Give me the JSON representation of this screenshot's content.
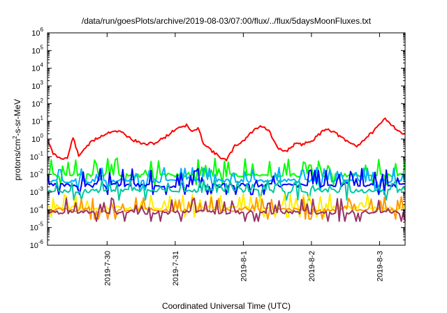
{
  "chart_data": {
    "type": "line",
    "title": "/data/run/goesPlots/archive/2019-08-03/07:00/flux/../flux/5daysMoonFluxes.txt",
    "xlabel": "Coordinated Universal Time (UTC)",
    "ylabel_parts": [
      "protons/cm",
      "2",
      "-s-sr-MeV"
    ],
    "yscale": "log",
    "ylim": [
      1e-06,
      1000000.0
    ],
    "y_ticks": [
      {
        "base": "10",
        "exp": "-6",
        "value": 1e-06
      },
      {
        "base": "10",
        "exp": "-5",
        "value": 1e-05
      },
      {
        "base": "10",
        "exp": "-4",
        "value": 0.0001
      },
      {
        "base": "10",
        "exp": "-3",
        "value": 0.001
      },
      {
        "base": "10",
        "exp": "-2",
        "value": 0.01
      },
      {
        "base": "10",
        "exp": "-1",
        "value": 0.1
      },
      {
        "base": "10",
        "exp": "0",
        "value": 1
      },
      {
        "base": "10",
        "exp": "1",
        "value": 10
      },
      {
        "base": "10",
        "exp": "2",
        "value": 100
      },
      {
        "base": "10",
        "exp": "3",
        "value": 1000
      },
      {
        "base": "10",
        "exp": "4",
        "value": 10000
      },
      {
        "base": "10",
        "exp": "5",
        "value": 100000
      },
      {
        "base": "10",
        "exp": "6",
        "value": 1000000
      }
    ],
    "xlim": [
      "2019-07-29T03:00",
      "2019-08-03T09:00"
    ],
    "x_ticks": [
      {
        "label": "2019-7-30",
        "value": "2019-07-30T00:00"
      },
      {
        "label": "2019-7-31",
        "value": "2019-07-31T00:00"
      },
      {
        "label": "2019-8-1",
        "value": "2019-08-01T00:00"
      },
      {
        "label": "2019-8-2",
        "value": "2019-08-02T00:00"
      },
      {
        "label": "2019-8-3",
        "value": "2019-08-03T00:00"
      }
    ],
    "grid": false,
    "legend": "none",
    "series": [
      {
        "color": "#ff0000",
        "style": "smooth",
        "points": [
          [
            "2019-07-29T03:00",
            0.8
          ],
          [
            "2019-07-29T05:00",
            0.15
          ],
          [
            "2019-07-29T07:00",
            0.09
          ],
          [
            "2019-07-29T10:00",
            0.08
          ],
          [
            "2019-07-29T12:00",
            1.3
          ],
          [
            "2019-07-29T14:00",
            0.1
          ],
          [
            "2019-07-29T16:00",
            0.3
          ],
          [
            "2019-07-29T19:00",
            0.8
          ],
          [
            "2019-07-29T22:00",
            1.5
          ],
          [
            "2019-07-30T02:00",
            3
          ],
          [
            "2019-07-30T05:00",
            2.5
          ],
          [
            "2019-07-30T09:00",
            0.9
          ],
          [
            "2019-07-30T13:00",
            0.5
          ],
          [
            "2019-07-30T17:00",
            0.6
          ],
          [
            "2019-07-30T21:00",
            1.5
          ],
          [
            "2019-07-31T01:00",
            4.5
          ],
          [
            "2019-07-31T04:00",
            6
          ],
          [
            "2019-07-31T06:00",
            2.5
          ],
          [
            "2019-07-31T08:00",
            4
          ],
          [
            "2019-07-31T10:00",
            0.6
          ],
          [
            "2019-07-31T14:00",
            0.15
          ],
          [
            "2019-07-31T18:00",
            0.06
          ],
          [
            "2019-07-31T21:00",
            0.4
          ],
          [
            "2019-08-01T00:00",
            0.8
          ],
          [
            "2019-08-01T03:00",
            2.5
          ],
          [
            "2019-08-01T06:00",
            6
          ],
          [
            "2019-08-01T09:00",
            3
          ],
          [
            "2019-08-01T12:00",
            0.3
          ],
          [
            "2019-08-01T15:00",
            0.2
          ],
          [
            "2019-08-01T18:00",
            0.5
          ],
          [
            "2019-08-01T21:00",
            0.5
          ],
          [
            "2019-08-02T01:00",
            1
          ],
          [
            "2019-08-02T05:00",
            4
          ],
          [
            "2019-08-02T08:00",
            2.5
          ],
          [
            "2019-08-02T12:00",
            0.8
          ],
          [
            "2019-08-02T16:00",
            0.4
          ],
          [
            "2019-08-02T20:00",
            1.5
          ],
          [
            "2019-08-02T23:00",
            4
          ],
          [
            "2019-08-03T02:00",
            15
          ],
          [
            "2019-08-03T05:00",
            5
          ],
          [
            "2019-08-03T08:00",
            2
          ],
          [
            "2019-08-03T09:00",
            2
          ]
        ]
      },
      {
        "color": "#00ff00",
        "style": "spiky",
        "base": 0.009,
        "amp": 0.08,
        "seed": 1
      },
      {
        "color": "#00b0ff",
        "style": "spiky",
        "base": 0.0045,
        "amp": 0.02,
        "seed": 2
      },
      {
        "color": "#0000ff",
        "style": "spiky",
        "base": 0.0025,
        "amp": 0.02,
        "seed": 3
      },
      {
        "color": "#00c8a0",
        "style": "spiky",
        "base": 0.0012,
        "amp": 0.004,
        "seed": 4
      },
      {
        "color": "#ffee00",
        "style": "spiky",
        "base": 0.00013,
        "amp": 0.0007,
        "seed": 5
      },
      {
        "color": "#ff9900",
        "style": "spiky",
        "base": 0.0001,
        "amp": 0.0005,
        "seed": 6
      },
      {
        "color": "#993366",
        "style": "spiky",
        "base": 7.5e-05,
        "amp": 0.0004,
        "seed": 7
      }
    ]
  }
}
